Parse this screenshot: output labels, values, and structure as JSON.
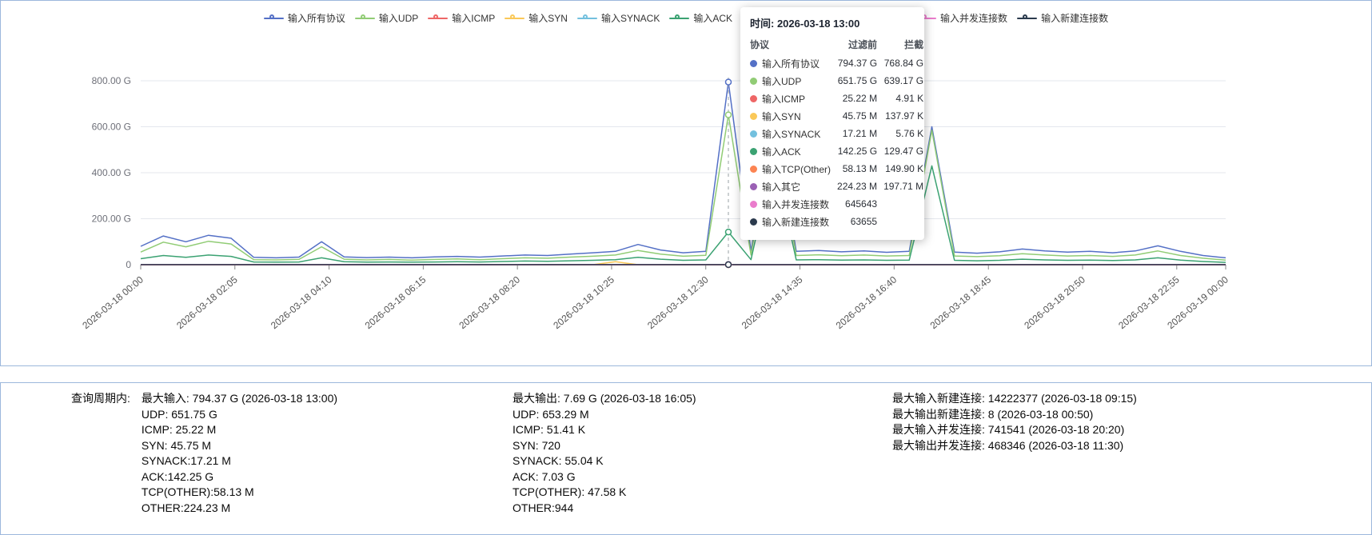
{
  "tooltip": {
    "title": "时间: 2026-03-18 13:00",
    "columns": [
      "协议",
      "过滤前",
      "拦截"
    ],
    "rows": [
      {
        "name": "输入所有协议",
        "color": "#5470c6",
        "before": "794.37 G",
        "blocked": "768.84 G"
      },
      {
        "name": "输入UDP",
        "color": "#91cc75",
        "before": "651.75 G",
        "blocked": "639.17 G"
      },
      {
        "name": "输入ICMP",
        "color": "#ee6666",
        "before": "25.22 M",
        "blocked": "4.91 K"
      },
      {
        "name": "输入SYN",
        "color": "#fac858",
        "before": "45.75 M",
        "blocked": "137.97 K"
      },
      {
        "name": "输入SYNACK",
        "color": "#73c0de",
        "before": "17.21 M",
        "blocked": "5.76 K"
      },
      {
        "name": "输入ACK",
        "color": "#3ba272",
        "before": "142.25 G",
        "blocked": "129.47 G"
      },
      {
        "name": "输入TCP(Other)",
        "color": "#fc8452",
        "before": "58.13 M",
        "blocked": "149.90 K"
      },
      {
        "name": "输入其它",
        "color": "#9a60b4",
        "before": "224.23 M",
        "blocked": "197.71 M"
      },
      {
        "name": "输入并发连接数",
        "color": "#ea7ccc",
        "before": "645643",
        "blocked": ""
      },
      {
        "name": "输入新建连接数",
        "color": "#2b3a4d",
        "before": "63655",
        "blocked": ""
      }
    ]
  },
  "chart_data": {
    "type": "line",
    "title": "",
    "ylabel": "",
    "xlabel": "",
    "ylim": [
      0,
      800
    ],
    "grid": true,
    "legend_position": "top",
    "y_ticks": [
      {
        "label": "800.00 G",
        "v": 800
      },
      {
        "label": "600.00 G",
        "v": 600
      },
      {
        "label": "400.00 G",
        "v": 400
      },
      {
        "label": "200.00 G",
        "v": 200
      },
      {
        "label": "0",
        "v": 0
      }
    ],
    "x_ticks": [
      {
        "label": "2026-03-18 00:00",
        "pos": 0
      },
      {
        "label": "2026-03-18 02:05",
        "pos": 0.0868
      },
      {
        "label": "2026-03-18 04:10",
        "pos": 0.1736
      },
      {
        "label": "2026-03-18 06:15",
        "pos": 0.2604
      },
      {
        "label": "2026-03-18 08:20",
        "pos": 0.3472
      },
      {
        "label": "2026-03-18 10:25",
        "pos": 0.434
      },
      {
        "label": "2026-03-18 12:30",
        "pos": 0.5208
      },
      {
        "label": "2026-03-18 14:35",
        "pos": 0.6076
      },
      {
        "label": "2026-03-18 16:40",
        "pos": 0.6944
      },
      {
        "label": "2026-03-18 18:45",
        "pos": 0.7813
      },
      {
        "label": "2026-03-18 20:50",
        "pos": 0.8681
      },
      {
        "label": "2026-03-18 22:55",
        "pos": 0.9549
      },
      {
        "label": "2026-03-19 00:00",
        "pos": 1
      }
    ],
    "unit": "G (values approximated from pixels at 30-min resolution)",
    "hover": {
      "index": 26,
      "label": "2026-03-18 13:00"
    },
    "series": [
      {
        "key": "all",
        "name": "输入所有协议",
        "color": "#5470c6",
        "values": [
          80,
          125,
          100,
          128,
          115,
          32,
          30,
          33,
          100,
          34,
          31,
          33,
          30,
          34,
          36,
          33,
          38,
          42,
          40,
          46,
          52,
          58,
          88,
          64,
          52,
          58,
          794.37,
          60,
          640,
          58,
          62,
          56,
          60,
          54,
          58,
          600,
          55,
          50,
          56,
          68,
          60,
          55,
          58,
          52,
          60,
          82,
          58,
          40,
          30
        ]
      },
      {
        "key": "udp",
        "name": "输入UDP",
        "color": "#91cc75",
        "values": [
          55,
          98,
          78,
          102,
          90,
          22,
          21,
          23,
          78,
          24,
          21,
          23,
          20,
          23,
          25,
          22,
          26,
          30,
          28,
          33,
          37,
          42,
          62,
          46,
          37,
          41,
          651.75,
          42,
          620,
          40,
          43,
          39,
          42,
          38,
          40,
          585,
          38,
          35,
          39,
          48,
          42,
          38,
          40,
          36,
          42,
          60,
          40,
          28,
          20
        ]
      },
      {
        "key": "icmp",
        "name": "输入ICMP",
        "color": "#ee6666",
        "baseline": 0.03
      },
      {
        "key": "syn",
        "name": "输入SYN",
        "color": "#fac858",
        "baseline": 0.05,
        "overrides": {
          "21": 13
        }
      },
      {
        "key": "synack",
        "name": "输入SYNACK",
        "color": "#73c0de",
        "baseline": 0.02
      },
      {
        "key": "ack",
        "name": "输入ACK",
        "color": "#3ba272",
        "values": [
          26,
          40,
          32,
          42,
          36,
          12,
          11,
          12,
          30,
          13,
          11,
          12,
          11,
          12,
          13,
          12,
          14,
          16,
          15,
          17,
          19,
          22,
          32,
          24,
          19,
          21,
          142.25,
          22,
          470,
          21,
          22,
          20,
          21,
          19,
          20,
          430,
          19,
          17,
          19,
          24,
          21,
          19,
          20,
          18,
          21,
          30,
          20,
          14,
          10
        ]
      },
      {
        "key": "tcp_other",
        "name": "输入TCP(Other)",
        "color": "#fc8452",
        "baseline": 0.06
      },
      {
        "key": "other",
        "name": "输入其它",
        "color": "#9a60b4",
        "baseline": 0.25
      },
      {
        "key": "concurrent",
        "name": "输入并发连接数",
        "color": "#ea7ccc",
        "baseline": 0.5
      },
      {
        "key": "new_conn",
        "name": "输入新建连接数",
        "color": "#2b3a4d",
        "baseline": 0.2
      }
    ]
  },
  "summary": {
    "prefix": "查询周期内:",
    "input_lines": [
      "最大输入: 794.37 G (2026-03-18 13:00)",
      "UDP: 651.75 G",
      "ICMP: 25.22 M",
      "SYN: 45.75 M",
      "SYNACK:17.21 M",
      "ACK:142.25 G",
      "TCP(OTHER):58.13 M",
      "OTHER:224.23 M"
    ],
    "output_lines": [
      "最大输出: 7.69 G (2026-03-18 16:05)",
      "UDP: 653.29 M",
      "ICMP: 51.41 K",
      "SYN: 720",
      "SYNACK: 55.04 K",
      "ACK: 7.03 G",
      "TCP(OTHER): 47.58 K",
      "OTHER:944"
    ],
    "conn_lines": [
      "最大输入新建连接: 14222377 (2026-03-18 09:15)",
      "最大输出新建连接: 8 (2026-03-18 00:50)",
      "最大输入并发连接: 741541 (2026-03-18 20:20)",
      "最大输出并发连接: 468346 (2026-03-18 11:30)"
    ]
  }
}
